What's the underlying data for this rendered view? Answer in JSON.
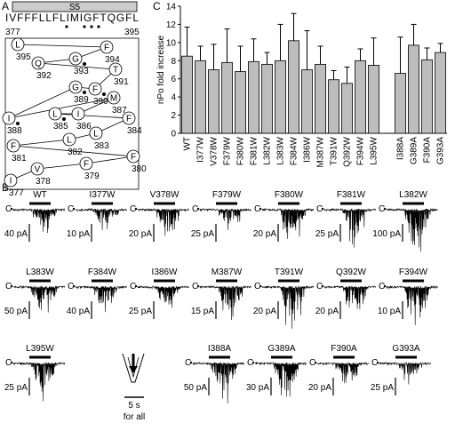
{
  "panel_a": {
    "label": "A",
    "segment": "S5",
    "sequence": "IVFFFLLFLIMIGFTQGFL",
    "start": "377",
    "end": "395",
    "wheel": [
      {
        "letter": "I",
        "number": "377"
      },
      {
        "letter": "V",
        "number": "378"
      },
      {
        "letter": "F",
        "number": "379"
      },
      {
        "letter": "F",
        "number": "380"
      },
      {
        "letter": "F",
        "number": "381"
      },
      {
        "letter": "L",
        "number": "382"
      },
      {
        "letter": "L",
        "number": "383"
      },
      {
        "letter": "F",
        "number": "384"
      },
      {
        "letter": "L",
        "number": "385"
      },
      {
        "letter": "I",
        "number": "386"
      },
      {
        "letter": "M",
        "number": "387"
      },
      {
        "letter": "I",
        "number": "388"
      },
      {
        "letter": "G",
        "number": "389"
      },
      {
        "letter": "F",
        "number": "390"
      },
      {
        "letter": "T",
        "number": "391"
      },
      {
        "letter": "Q",
        "number": "392"
      },
      {
        "letter": "G",
        "number": "393"
      },
      {
        "letter": "F",
        "number": "394"
      },
      {
        "letter": "L",
        "number": "395"
      }
    ]
  },
  "panel_b": {
    "label": "B",
    "closed_marker": "C",
    "time_scale": "5 s",
    "time_note": "for all",
    "traces": [
      {
        "name": "WT",
        "scale": "40 pA"
      },
      {
        "name": "I377W",
        "scale": "10 pA"
      },
      {
        "name": "V378W",
        "scale": "20 pA"
      },
      {
        "name": "F379W",
        "scale": "25 pA"
      },
      {
        "name": "F380W",
        "scale": "20 pA"
      },
      {
        "name": "F381W",
        "scale": "25 pA"
      },
      {
        "name": "L382W",
        "scale": "100 pA"
      },
      {
        "name": "L383W",
        "scale": "50 pA"
      },
      {
        "name": "F384W",
        "scale": "40 pA"
      },
      {
        "name": "I386W",
        "scale": "25 pA"
      },
      {
        "name": "M387W",
        "scale": "15 pA"
      },
      {
        "name": "T391W",
        "scale": "20 pA"
      },
      {
        "name": "Q392W",
        "scale": "20 pA"
      },
      {
        "name": "F394W",
        "scale": "10 pA"
      },
      {
        "name": "L395W",
        "scale": "25 pA"
      },
      {
        "name": "I388A",
        "scale": "50 pA"
      },
      {
        "name": "G389A",
        "scale": "30 pA"
      },
      {
        "name": "F390A",
        "scale": "20 pA"
      },
      {
        "name": "G393A",
        "scale": "25 pA"
      }
    ]
  },
  "chart_data": {
    "type": "bar",
    "label": "C",
    "y_label": "nPo fold increase",
    "color": "#bdbdbd",
    "categories": [
      "WT",
      "I377W",
      "V378W",
      "F379W",
      "F380W",
      "F381W",
      "L382W",
      "L383W",
      "F384W",
      "I386W",
      "M387W",
      "T391W",
      "Q392W",
      "F394W",
      "L395W",
      null,
      "I388A",
      "G389A",
      "F390A",
      "G393A"
    ],
    "values": [
      8.5,
      8.0,
      7.0,
      7.8,
      6.8,
      7.9,
      7.6,
      8.0,
      10.2,
      7.0,
      7.6,
      5.9,
      5.5,
      8.0,
      7.5,
      null,
      6.6,
      9.7,
      8.1,
      8.9
    ],
    "errors": [
      3.2,
      1.6,
      2.8,
      3.7,
      2.8,
      2.5,
      1.3,
      4.0,
      3.0,
      4.3,
      2.0,
      1.0,
      1.8,
      1.3,
      3.0,
      null,
      4.0,
      2.3,
      1.3,
      1.0
    ],
    "ylim": [
      0,
      14
    ],
    "yticks": [
      0,
      2,
      4,
      6,
      8,
      10,
      12,
      14
    ]
  }
}
